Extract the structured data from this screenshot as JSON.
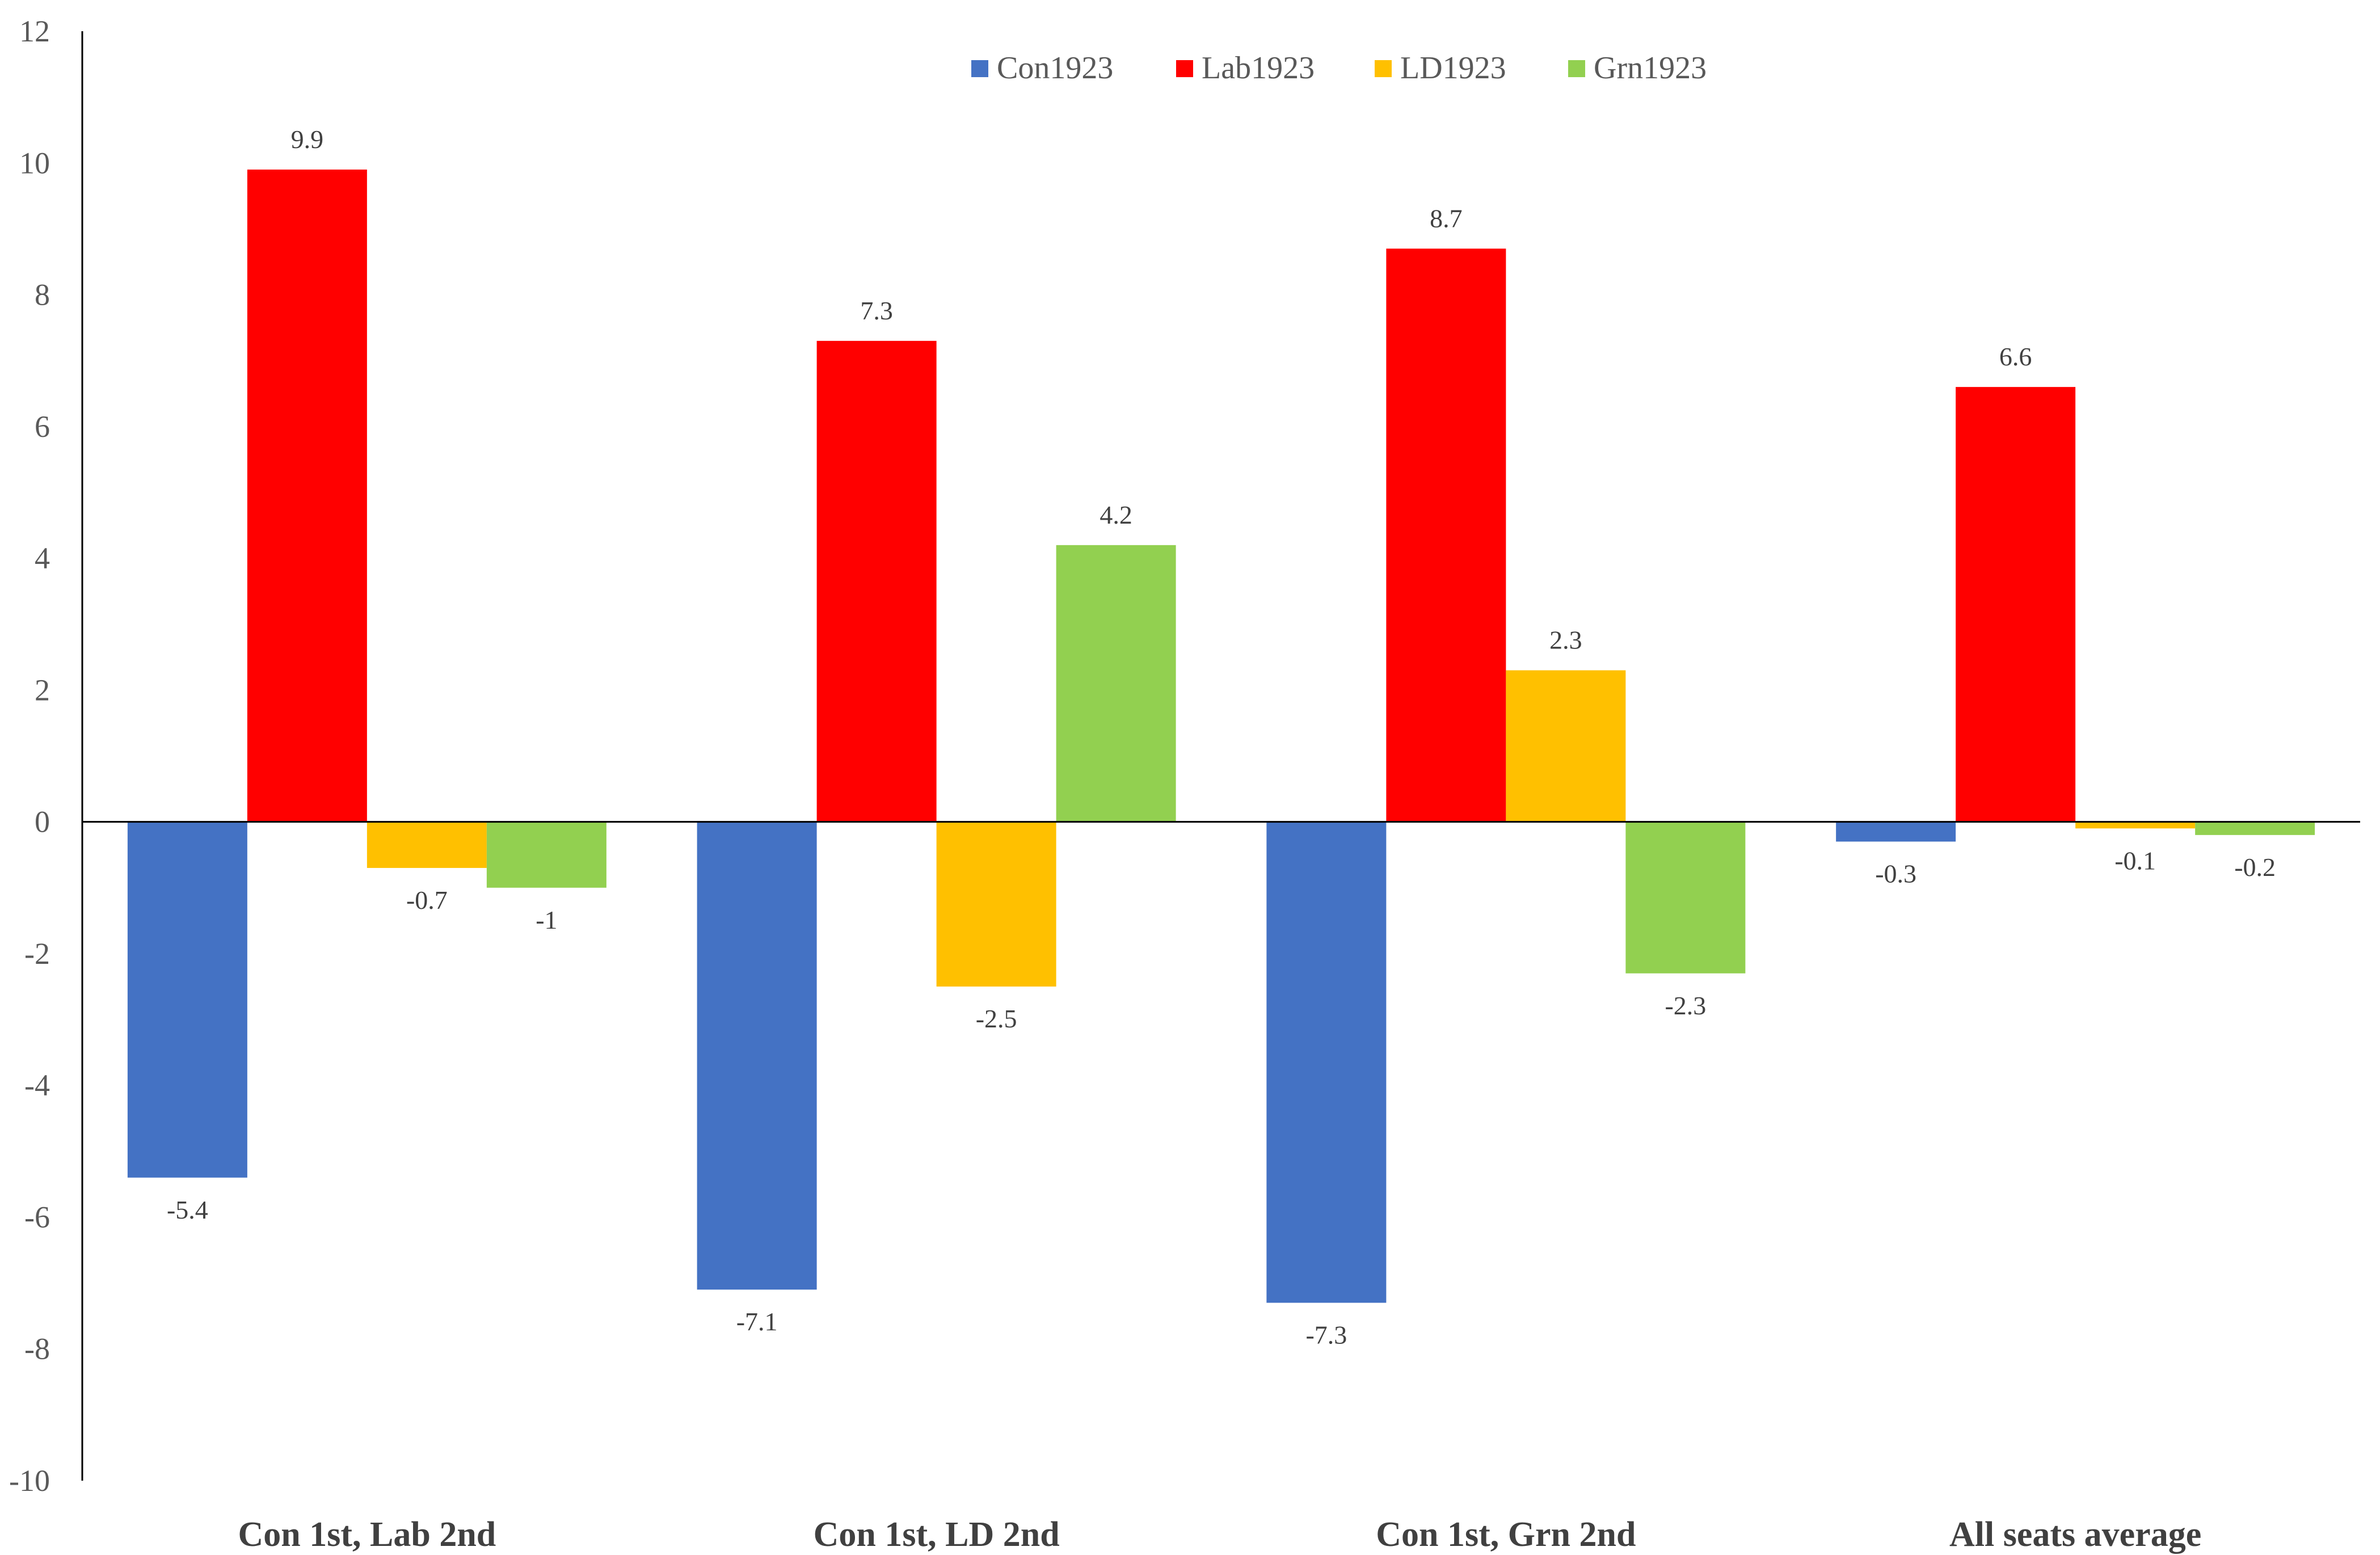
{
  "chart_data": {
    "type": "bar",
    "title": "",
    "xlabel": "",
    "ylabel": "",
    "ylim": [
      -10,
      12
    ],
    "yticks": [
      12,
      10,
      8,
      6,
      4,
      2,
      0,
      -2,
      -4,
      -6,
      -8,
      -10
    ],
    "grid": false,
    "legend_position": "top-center",
    "categories": [
      "Con 1st, Lab 2nd",
      "Con 1st, LD 2nd",
      "Con 1st, Grn 2nd",
      "All seats average"
    ],
    "series": [
      {
        "name": "Con1923",
        "color": "#4472C4",
        "values": [
          -5.4,
          -7.1,
          -7.3,
          -0.3
        ]
      },
      {
        "name": "Lab1923",
        "color": "#FF0000",
        "values": [
          9.9,
          7.3,
          8.7,
          6.6
        ]
      },
      {
        "name": "LD1923",
        "color": "#FFC000",
        "values": [
          -0.7,
          -2.5,
          2.3,
          -0.1
        ]
      },
      {
        "name": "Grn1923",
        "color": "#92D050",
        "values": [
          -1,
          4.2,
          -2.3,
          -0.2
        ]
      }
    ]
  }
}
